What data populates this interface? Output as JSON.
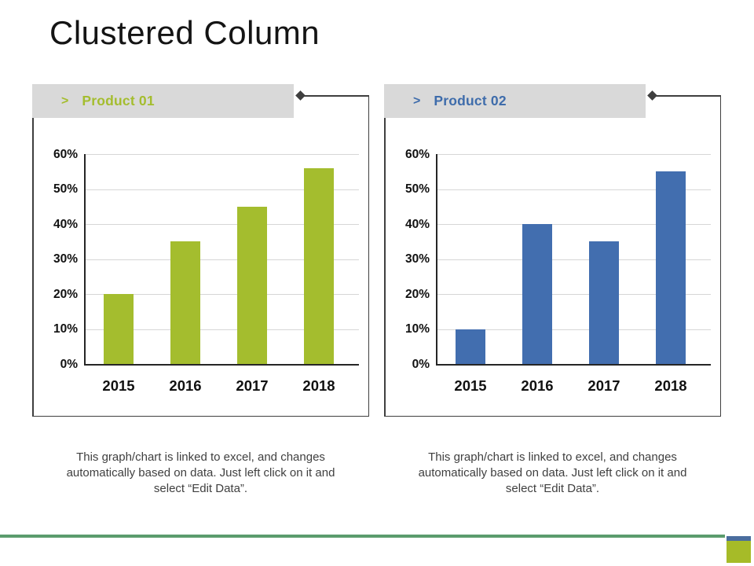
{
  "slide": {
    "title": "Clustered Column",
    "footer": {
      "line_color": "#5b9c6d",
      "square_blue": "#4a6d9e",
      "square_green": "#a6bb28"
    }
  },
  "chart_data": [
    {
      "type": "bar",
      "title": "Product 01",
      "header_chevron": ">",
      "categories": [
        "2015",
        "2016",
        "2017",
        "2018"
      ],
      "values": [
        20,
        35,
        45,
        56
      ],
      "unit": "%",
      "ylim": [
        0,
        60
      ],
      "ytick_labels": [
        "60%",
        "50%",
        "40%",
        "30%",
        "20%",
        "10%",
        "0%"
      ],
      "grid": "horizontal",
      "legend": "none",
      "bar_color": "#a4bd2e",
      "title_color": "#a4bd2e",
      "caption_lines": [
        "This graph/chart is linked to excel, and changes",
        "automatically based on data. Just left click on it and",
        "select “Edit Data”."
      ]
    },
    {
      "type": "bar",
      "title": "Product 02",
      "header_chevron": ">",
      "categories": [
        "2015",
        "2016",
        "2017",
        "2018"
      ],
      "values": [
        10,
        40,
        35,
        55
      ],
      "unit": "%",
      "ylim": [
        0,
        60
      ],
      "ytick_labels": [
        "60%",
        "50%",
        "40%",
        "30%",
        "20%",
        "10%",
        "0%"
      ],
      "grid": "horizontal",
      "legend": "none",
      "bar_color": "#426eaf",
      "title_color": "#3e6cab",
      "caption_lines": [
        "This graph/chart is linked to excel, and changes",
        "automatically based on data. Just left click on it and",
        "select “Edit Data”."
      ]
    }
  ]
}
